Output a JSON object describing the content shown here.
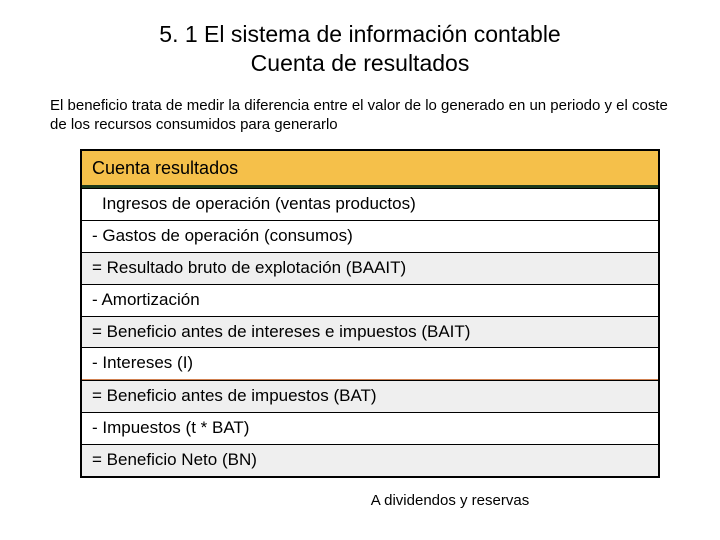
{
  "title": {
    "line1": "5. 1 El sistema de información contable",
    "line2": "Cuenta de resultados"
  },
  "intro": "El beneficio trata de medir la diferencia entre el valor de lo generado en un periodo y el coste de los recursos consumidos para generarlo",
  "table": {
    "header": "Cuenta resultados",
    "rows": [
      {
        "text": "Ingresos de operación (ventas productos)",
        "indent": true,
        "shade": false,
        "redUnder": false
      },
      {
        "text": "- Gastos de operación (consumos)",
        "indent": false,
        "shade": false,
        "redUnder": false
      },
      {
        "text": "= Resultado bruto de explotación (BAAIT)",
        "indent": false,
        "shade": true,
        "redUnder": false
      },
      {
        "text": "- Amortización",
        "indent": false,
        "shade": false,
        "redUnder": false
      },
      {
        "text": "= Beneficio antes de intereses e impuestos (BAIT)",
        "indent": false,
        "shade": true,
        "redUnder": false
      },
      {
        "text": "- Intereses (I)",
        "indent": false,
        "shade": false,
        "redUnder": true
      },
      {
        "text": "= Beneficio antes de impuestos (BAT)",
        "indent": false,
        "shade": true,
        "redUnder": false
      },
      {
        "text": "- Impuestos (t * BAT)",
        "indent": false,
        "shade": false,
        "redUnder": false
      },
      {
        "text": "= Beneficio Neto (BN)",
        "indent": false,
        "shade": true,
        "redUnder": false
      }
    ]
  },
  "footer": "A dividendos y reservas",
  "colors": {
    "headerBg": "#f5c04a",
    "headerUnderline": "#1c3a1c",
    "shadeBg": "#efefef",
    "redDivider": "#d08050",
    "border": "#000000",
    "text": "#000000",
    "pageBg": "#ffffff"
  },
  "fonts": {
    "title_pt": 23,
    "intro_pt": 15,
    "row_pt": 17,
    "footer_pt": 15
  }
}
